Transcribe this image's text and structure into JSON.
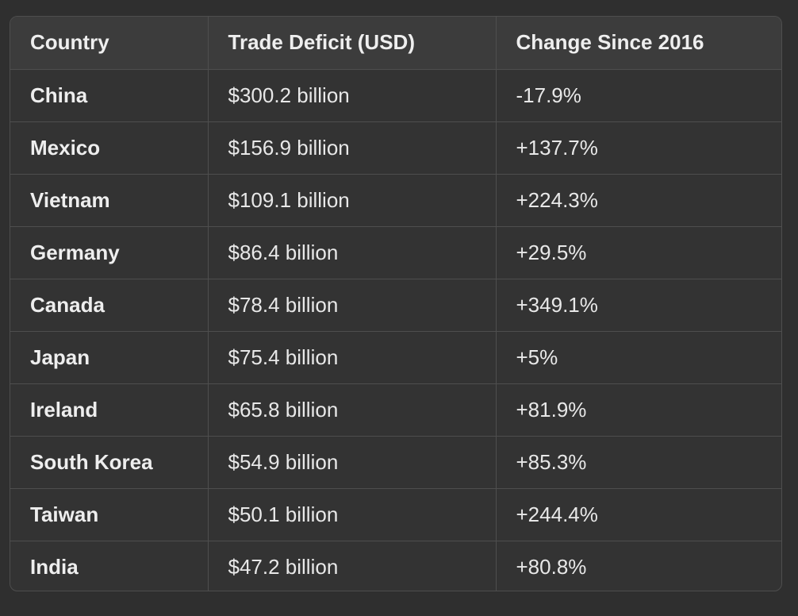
{
  "table": {
    "headers": [
      "Country",
      "Trade Deficit (USD)",
      "Change Since 2016"
    ],
    "rows": [
      {
        "country": "China",
        "deficit": "$300.2 billion",
        "change": "-17.9%"
      },
      {
        "country": "Mexico",
        "deficit": "$156.9 billion",
        "change": "+137.7%"
      },
      {
        "country": "Vietnam",
        "deficit": "$109.1 billion",
        "change": "+224.3%"
      },
      {
        "country": "Germany",
        "deficit": "$86.4 billion",
        "change": "+29.5%"
      },
      {
        "country": "Canada",
        "deficit": "$78.4 billion",
        "change": "+349.1%"
      },
      {
        "country": "Japan",
        "deficit": "$75.4 billion",
        "change": "+5%"
      },
      {
        "country": "Ireland",
        "deficit": "$65.8 billion",
        "change": "+81.9%"
      },
      {
        "country": "South Korea",
        "deficit": "$54.9 billion",
        "change": "+85.3%"
      },
      {
        "country": "Taiwan",
        "deficit": "$50.1 billion",
        "change": "+244.4%"
      },
      {
        "country": "India",
        "deficit": "$47.2 billion",
        "change": "+80.8%"
      }
    ]
  }
}
